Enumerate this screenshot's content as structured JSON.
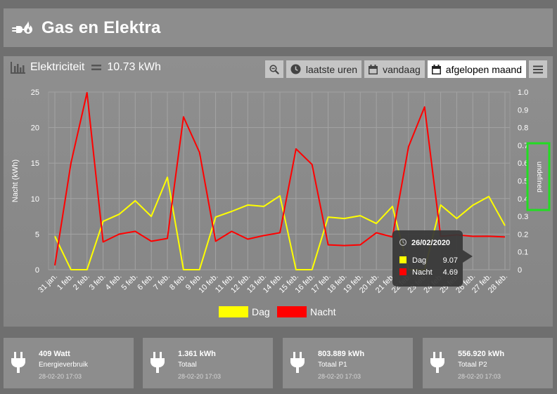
{
  "header": {
    "title": "Gas en Elektra",
    "logo_icon": "plug-flame-icon"
  },
  "panel": {
    "title": "Elektriciteit",
    "total": "10.73 kWh",
    "toolbar": {
      "zoom_icon": "zoom-out-icon",
      "btn_hours": "laatste uren",
      "btn_today": "vandaag",
      "btn_month": "afgelopen maand",
      "menu_icon": "hamburger-menu-icon"
    }
  },
  "chart_data": {
    "type": "line",
    "categories": [
      "31 jan.",
      "1 feb.",
      "2 feb.",
      "3 feb.",
      "4 feb.",
      "5 feb.",
      "6 feb.",
      "7 feb.",
      "8 feb.",
      "9 feb.",
      "10 feb.",
      "11 feb.",
      "12 feb.",
      "13 feb.",
      "14 feb.",
      "15 feb.",
      "16 feb.",
      "17 feb.",
      "18 feb.",
      "19 feb.",
      "20 feb.",
      "21 feb.",
      "22 feb.",
      "23 feb.",
      "24 feb.",
      "25 feb.",
      "26 feb.",
      "27 feb.",
      "28 feb."
    ],
    "series": [
      {
        "name": "Dag",
        "color": "#ffff00",
        "values": [
          4.7,
          0,
          0,
          6.8,
          7.8,
          9.7,
          7.5,
          13,
          0,
          0,
          7.4,
          8.2,
          9.1,
          8.9,
          10.4,
          0,
          0,
          7.4,
          7.2,
          7.6,
          6.5,
          8.9,
          0,
          0,
          9.1,
          7.2,
          9.07,
          10.3,
          6.2
        ]
      },
      {
        "name": "Nacht",
        "color": "#ff0000",
        "values": [
          0.6,
          15,
          24.9,
          3.9,
          5.0,
          5.4,
          4.0,
          4.4,
          21.5,
          16.5,
          4.0,
          5.4,
          4.3,
          4.8,
          5.2,
          17,
          14.8,
          3.5,
          3.4,
          3.5,
          5.2,
          4.6,
          17.3,
          22.9,
          4.7,
          4.9,
          4.69,
          4.7,
          4.6
        ]
      }
    ],
    "ylabel": "Nacht (kWh)",
    "ylim": [
      0,
      25
    ],
    "yticks": [
      "0",
      "5",
      "10",
      "15",
      "20",
      "25"
    ],
    "y2label": "undefined",
    "y2lim": [
      0,
      1
    ],
    "y2ticks": [
      "0",
      "0.1",
      "0.2",
      "0.3",
      "0.4",
      "0.5",
      "0.6",
      "0.7",
      "0.8",
      "0.9",
      "1.0"
    ],
    "grid": true,
    "legend": "bottom",
    "tooltip": {
      "date": "26/02/2020",
      "index": 26,
      "rows": [
        {
          "name": "Dag",
          "value": "9.07",
          "color": "#ffff00"
        },
        {
          "name": "Nacht",
          "value": "4.69",
          "color": "#ff0000"
        }
      ]
    }
  },
  "cards": [
    {
      "value": "409 Watt",
      "label": "Energieverbruik",
      "timestamp": "28-02-20 17:03",
      "icon": "plug-icon"
    },
    {
      "value": "1.361 kWh",
      "label": "Totaal",
      "timestamp": "28-02-20 17:03",
      "icon": "plug-icon"
    },
    {
      "value": "803.889 kWh",
      "label": "Totaal P1",
      "timestamp": "28-02-20 17:03",
      "icon": "plug-icon"
    },
    {
      "value": "556.920 kWh",
      "label": "Totaal P2",
      "timestamp": "28-02-20 17:03",
      "icon": "plug-icon"
    }
  ]
}
